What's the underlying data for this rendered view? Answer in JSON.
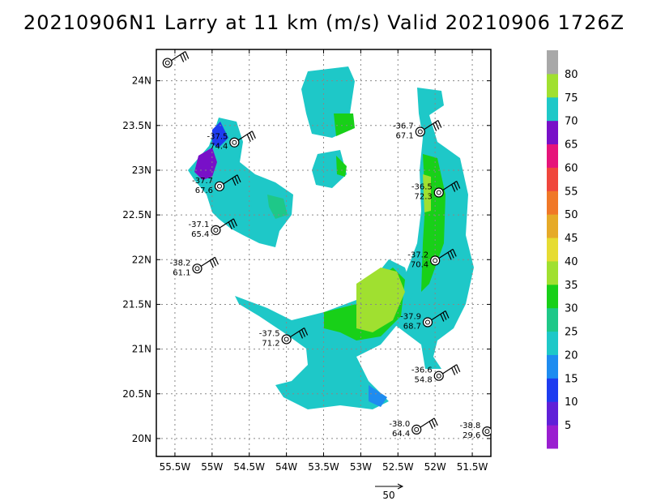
{
  "title": "20210906N1 Larry at 11 km (m/s) Valid 20210906  1726Z",
  "reference_vector": {
    "label": "50",
    "value": 50
  },
  "colorbar": {
    "labels": [
      "5",
      "10",
      "15",
      "20",
      "25",
      "30",
      "35",
      "40",
      "45",
      "50",
      "55",
      "60",
      "65",
      "70",
      "75",
      "80"
    ],
    "colors": [
      "#9a1ed0",
      "#6020d8",
      "#1e3cf0",
      "#1e8cf0",
      "#1ec8c8",
      "#1ec888",
      "#18d018",
      "#a0e030",
      "#e6dc32",
      "#e6aa28",
      "#f07828",
      "#f0463c",
      "#e6147a",
      "#7810c8",
      "#1ec8c8",
      "#a0e030",
      "#a8a8a8"
    ]
  },
  "chart_data": {
    "type": "map",
    "x_axis": {
      "range_lon_w": [
        55.75,
        51.25
      ],
      "ticks": [
        {
          "value": 55.5,
          "label": "55.5W"
        },
        {
          "value": 55.0,
          "label": "55W"
        },
        {
          "value": 54.5,
          "label": "54.5W"
        },
        {
          "value": 54.0,
          "label": "54W"
        },
        {
          "value": 53.5,
          "label": "53.5W"
        },
        {
          "value": 53.0,
          "label": "53W"
        },
        {
          "value": 52.5,
          "label": "52.5W"
        },
        {
          "value": 52.0,
          "label": "52W"
        },
        {
          "value": 51.5,
          "label": "51.5W"
        }
      ]
    },
    "y_axis": {
      "range_lat_n": [
        19.8,
        24.35
      ],
      "ticks": [
        {
          "value": 20.0,
          "label": "20N"
        },
        {
          "value": 20.5,
          "label": "20.5N"
        },
        {
          "value": 21.0,
          "label": "21N"
        },
        {
          "value": 21.5,
          "label": "21.5N"
        },
        {
          "value": 22.0,
          "label": "22N"
        },
        {
          "value": 22.5,
          "label": "22.5N"
        },
        {
          "value": 23.0,
          "label": "23N"
        },
        {
          "value": 23.5,
          "label": "23.5N"
        },
        {
          "value": 24.0,
          "label": "24N"
        }
      ]
    },
    "grid": true,
    "dropsondes": [
      {
        "lon": 55.6,
        "lat": 24.2,
        "top": "",
        "bottom": ""
      },
      {
        "lon": 54.7,
        "lat": 23.31,
        "top": "-37.5",
        "bottom": "74.4"
      },
      {
        "lon": 54.9,
        "lat": 22.82,
        "top": "-37.7",
        "bottom": "67.6"
      },
      {
        "lon": 54.95,
        "lat": 22.33,
        "top": "-37.1",
        "bottom": "65.4"
      },
      {
        "lon": 55.2,
        "lat": 21.9,
        "top": "-38.2",
        "bottom": "61.1"
      },
      {
        "lon": 52.2,
        "lat": 23.43,
        "top": "-36.7",
        "bottom": "67.1"
      },
      {
        "lon": 51.95,
        "lat": 22.75,
        "top": "-36.5",
        "bottom": "72.3"
      },
      {
        "lon": 52.0,
        "lat": 21.99,
        "top": "-37.2",
        "bottom": "70.4"
      },
      {
        "lon": 52.1,
        "lat": 21.3,
        "top": "-37.9",
        "bottom": "68.7"
      },
      {
        "lon": 51.95,
        "lat": 20.7,
        "top": "-36.6",
        "bottom": "54.8"
      },
      {
        "lon": 52.25,
        "lat": 20.1,
        "top": "-38.0",
        "bottom": "64.4"
      },
      {
        "lon": 51.3,
        "lat": 20.08,
        "top": "-38.8",
        "bottom": "29.6"
      },
      {
        "lon": 54.0,
        "lat": 21.11,
        "top": "-37.5",
        "bottom": "71.2"
      }
    ]
  }
}
